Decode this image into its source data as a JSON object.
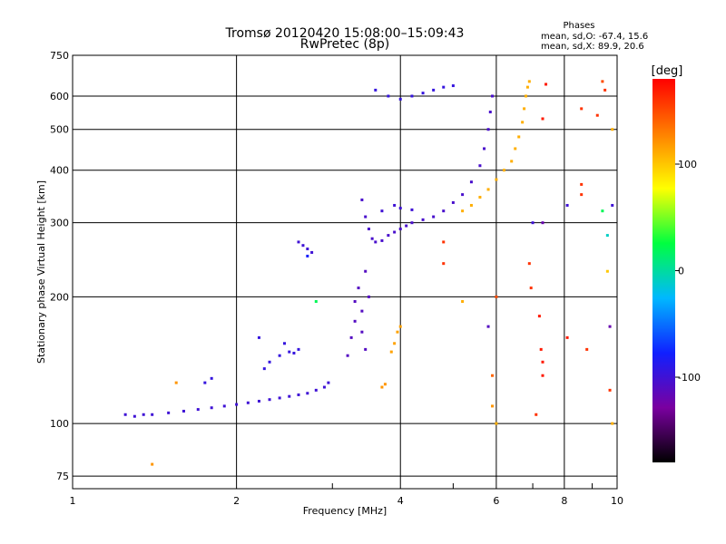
{
  "title_line1": "Tromsø 20120420 15:08:00–15:09:43",
  "title_line2": "RwPretec (8p)",
  "phases": {
    "heading": "Phases",
    "line_o": "mean, sd,O: -67.4, 15.6",
    "line_x": "mean, sd,X:  89.9, 20.6"
  },
  "chart_data": {
    "type": "scatter",
    "title": "Tromsø 20120420 15:08:00–15:09:43",
    "subtitle": "RwPretec (8p)",
    "xlabel": "Frequency [MHz]",
    "ylabel": "Stationary phase Virtual Height [km]",
    "xscale": "log",
    "yscale": "log",
    "xlim": [
      1,
      10
    ],
    "ylim": [
      70,
      750
    ],
    "grid": true,
    "xticks": [
      1,
      2,
      4,
      6,
      8,
      10
    ],
    "xtick_labels": [
      "1",
      "2",
      "4",
      "6",
      "8",
      "10"
    ],
    "yticks": [
      75,
      100,
      200,
      300,
      400,
      500,
      600,
      750
    ],
    "ytick_labels": [
      "75",
      "100",
      "200",
      "300",
      "400",
      "500",
      "600",
      "750"
    ],
    "colorbar": {
      "label": "[deg]",
      "min": -180,
      "max": 180,
      "ticks": [
        100,
        0,
        -100
      ],
      "tick_labels": [
        "100",
        "0",
        "-100"
      ],
      "stops": [
        "#000000",
        "#7a00a0",
        "#1020ff",
        "#00b8ff",
        "#00ff40",
        "#ffff00",
        "#ff8000",
        "#ff0000"
      ]
    },
    "series": [
      {
        "color_value": -100,
        "points": [
          [
            1.25,
            105
          ],
          [
            1.3,
            104
          ],
          [
            1.35,
            105
          ],
          [
            1.4,
            105
          ],
          [
            1.5,
            106
          ],
          [
            1.6,
            107
          ],
          [
            1.7,
            108
          ],
          [
            1.8,
            109
          ],
          [
            1.9,
            110
          ],
          [
            2.0,
            111
          ],
          [
            2.1,
            112
          ],
          [
            2.2,
            113
          ],
          [
            2.3,
            114
          ],
          [
            2.4,
            115
          ],
          [
            2.5,
            116
          ],
          [
            2.6,
            117
          ],
          [
            2.7,
            118
          ],
          [
            2.8,
            120
          ],
          [
            2.9,
            122
          ],
          [
            2.95,
            125
          ]
        ]
      },
      {
        "color_value": -95,
        "points": [
          [
            1.75,
            125
          ],
          [
            1.8,
            128
          ],
          [
            2.25,
            135
          ],
          [
            2.3,
            140
          ],
          [
            2.4,
            145
          ],
          [
            2.5,
            148
          ],
          [
            2.55,
            147
          ],
          [
            2.6,
            150
          ],
          [
            2.2,
            160
          ],
          [
            2.45,
            155
          ]
        ]
      },
      {
        "color_value": -100,
        "points": [
          [
            2.6,
            270
          ],
          [
            2.65,
            265
          ],
          [
            2.7,
            260
          ],
          [
            2.75,
            255
          ]
        ]
      },
      {
        "color_value": -110,
        "points": [
          [
            3.2,
            145
          ],
          [
            3.25,
            160
          ],
          [
            3.3,
            175
          ],
          [
            3.3,
            195
          ],
          [
            3.35,
            210
          ],
          [
            3.4,
            185
          ],
          [
            3.4,
            165
          ],
          [
            3.45,
            150
          ],
          [
            3.45,
            230
          ],
          [
            3.5,
            200
          ]
        ]
      },
      {
        "color_value": -105,
        "points": [
          [
            3.4,
            340
          ],
          [
            3.45,
            310
          ],
          [
            3.5,
            290
          ],
          [
            3.55,
            275
          ],
          [
            3.6,
            270
          ],
          [
            3.7,
            272
          ],
          [
            3.8,
            280
          ],
          [
            3.9,
            285
          ],
          [
            4.0,
            290
          ],
          [
            4.1,
            295
          ],
          [
            4.2,
            300
          ],
          [
            4.4,
            305
          ],
          [
            4.6,
            310
          ],
          [
            4.8,
            320
          ],
          [
            5.0,
            335
          ],
          [
            5.2,
            350
          ],
          [
            5.4,
            375
          ],
          [
            5.6,
            410
          ],
          [
            5.7,
            450
          ],
          [
            5.8,
            500
          ],
          [
            5.85,
            550
          ],
          [
            5.9,
            600
          ]
        ]
      },
      {
        "color_value": -100,
        "points": [
          [
            3.7,
            320
          ],
          [
            3.9,
            330
          ],
          [
            4.0,
            325
          ],
          [
            4.2,
            322
          ]
        ]
      },
      {
        "color_value": -95,
        "points": [
          [
            3.6,
            620
          ],
          [
            3.8,
            600
          ],
          [
            4.0,
            590
          ],
          [
            4.2,
            600
          ],
          [
            4.4,
            610
          ],
          [
            4.6,
            620
          ],
          [
            4.8,
            630
          ],
          [
            5.0,
            635
          ]
        ]
      },
      {
        "color_value": 115,
        "points": [
          [
            3.85,
            148
          ],
          [
            3.9,
            155
          ],
          [
            3.95,
            165
          ],
          [
            4.0,
            170
          ]
        ]
      },
      {
        "color_value": 120,
        "points": [
          [
            3.7,
            122
          ],
          [
            3.75,
            124
          ]
        ]
      },
      {
        "color_value": 110,
        "points": [
          [
            5.2,
            320
          ],
          [
            5.4,
            330
          ],
          [
            5.6,
            345
          ],
          [
            5.8,
            360
          ],
          [
            6.0,
            380
          ],
          [
            6.2,
            400
          ],
          [
            6.4,
            420
          ],
          [
            6.5,
            450
          ],
          [
            6.6,
            480
          ],
          [
            6.7,
            520
          ],
          [
            6.75,
            560
          ],
          [
            6.8,
            600
          ],
          [
            6.85,
            630
          ],
          [
            6.9,
            650
          ]
        ]
      }
    ],
    "scattered_points": [
      {
        "x": 1.4,
        "y": 80,
        "color_value": 120
      },
      {
        "x": 1.55,
        "y": 125,
        "color_value": 120
      },
      {
        "x": 2.7,
        "y": 250,
        "color_value": -80
      },
      {
        "x": 2.8,
        "y": 195,
        "color_value": 20
      },
      {
        "x": 4.8,
        "y": 270,
        "color_value": 160
      },
      {
        "x": 4.8,
        "y": 240,
        "color_value": 160
      },
      {
        "x": 5.2,
        "y": 195,
        "color_value": 110
      },
      {
        "x": 5.8,
        "y": 170,
        "color_value": -110
      },
      {
        "x": 5.9,
        "y": 130,
        "color_value": 140
      },
      {
        "x": 5.9,
        "y": 110,
        "color_value": 120
      },
      {
        "x": 6.0,
        "y": 100,
        "color_value": 110
      },
      {
        "x": 6.0,
        "y": 200,
        "color_value": 150
      },
      {
        "x": 6.9,
        "y": 240,
        "color_value": 160
      },
      {
        "x": 6.95,
        "y": 210,
        "color_value": 160
      },
      {
        "x": 7.0,
        "y": 300,
        "color_value": -100
      },
      {
        "x": 7.1,
        "y": 105,
        "color_value": 160
      },
      {
        "x": 7.2,
        "y": 180,
        "color_value": 170
      },
      {
        "x": 7.25,
        "y": 150,
        "color_value": 170
      },
      {
        "x": 7.3,
        "y": 130,
        "color_value": 170
      },
      {
        "x": 7.3,
        "y": 140,
        "color_value": 170
      },
      {
        "x": 7.4,
        "y": 640,
        "color_value": 170
      },
      {
        "x": 7.3,
        "y": 530,
        "color_value": 170
      },
      {
        "x": 7.3,
        "y": 300,
        "color_value": -120
      },
      {
        "x": 8.1,
        "y": 330,
        "color_value": -100
      },
      {
        "x": 8.1,
        "y": 160,
        "color_value": 170
      },
      {
        "x": 8.6,
        "y": 560,
        "color_value": 160
      },
      {
        "x": 8.6,
        "y": 370,
        "color_value": 160
      },
      {
        "x": 8.6,
        "y": 350,
        "color_value": 160
      },
      {
        "x": 8.8,
        "y": 150,
        "color_value": 160
      },
      {
        "x": 9.2,
        "y": 540,
        "color_value": 160
      },
      {
        "x": 9.4,
        "y": 650,
        "color_value": 150
      },
      {
        "x": 9.4,
        "y": 320,
        "color_value": 20
      },
      {
        "x": 9.5,
        "y": 620,
        "color_value": 160
      },
      {
        "x": 9.6,
        "y": 280,
        "color_value": -10
      },
      {
        "x": 9.6,
        "y": 230,
        "color_value": 100
      },
      {
        "x": 9.7,
        "y": 170,
        "color_value": -120
      },
      {
        "x": 9.7,
        "y": 120,
        "color_value": 160
      },
      {
        "x": 9.8,
        "y": 100,
        "color_value": 110
      },
      {
        "x": 9.8,
        "y": 330,
        "color_value": -100
      },
      {
        "x": 9.8,
        "y": 500,
        "color_value": 110
      }
    ]
  }
}
